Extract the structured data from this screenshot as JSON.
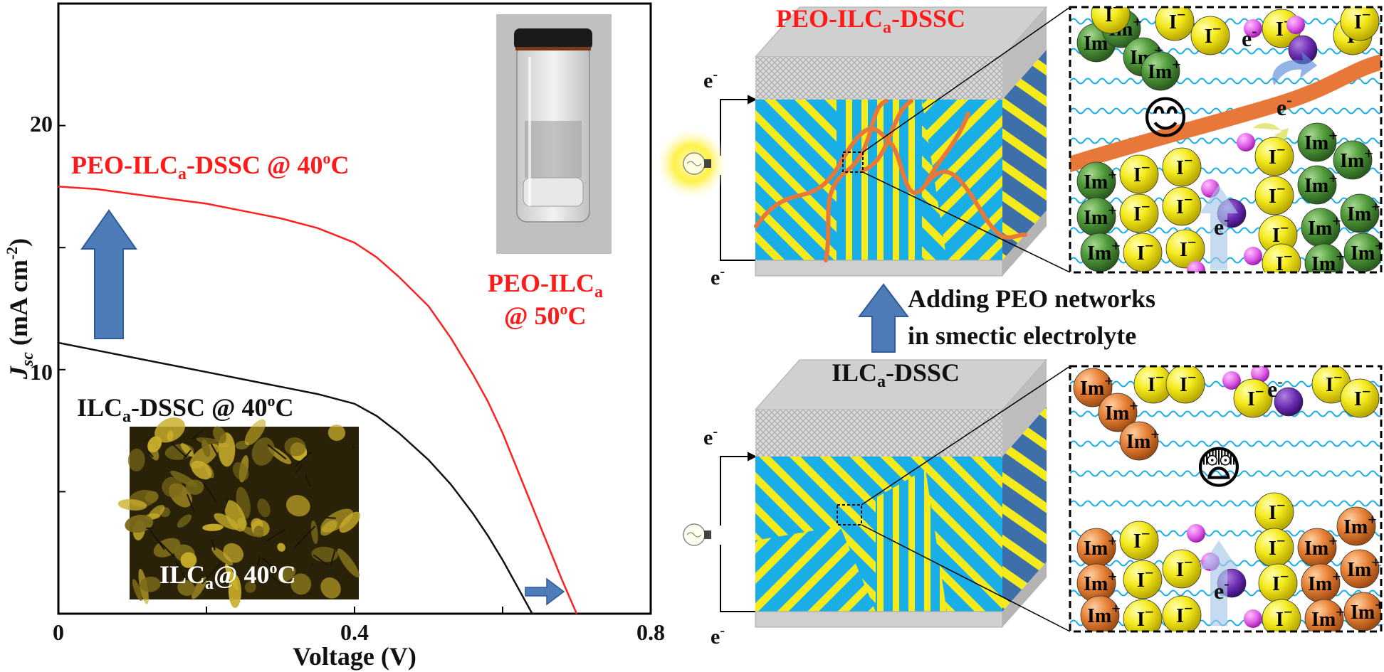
{
  "chart_data": {
    "type": "line",
    "xlabel": "Voltage (V)",
    "ylabel_main": "J",
    "ylabel_sub": "sc",
    "ylabel_unit": " (mA cm",
    "ylabel_sup": "-2",
    "ylabel_close": ")",
    "xlim": [
      0,
      0.8
    ],
    "ylim": [
      0,
      25
    ],
    "xticks": [
      "0",
      "0.4",
      "0.8"
    ],
    "yticks": [
      "10",
      "20"
    ],
    "series": [
      {
        "color": "#ff2020",
        "x": [
          0,
          0.05,
          0.1,
          0.15,
          0.2,
          0.25,
          0.3,
          0.35,
          0.4,
          0.43,
          0.46,
          0.5,
          0.53,
          0.56,
          0.58,
          0.6,
          0.62,
          0.64,
          0.66,
          0.68,
          0.7
        ],
        "y": [
          17.5,
          17.4,
          17.2,
          17.0,
          16.8,
          16.5,
          16.2,
          15.8,
          15.2,
          14.6,
          13.8,
          12.6,
          11.3,
          9.8,
          8.7,
          7.4,
          5.9,
          4.4,
          2.9,
          1.4,
          0
        ]
      },
      {
        "color": "#111111",
        "x": [
          0,
          0.05,
          0.1,
          0.15,
          0.2,
          0.25,
          0.3,
          0.35,
          0.4,
          0.43,
          0.46,
          0.5,
          0.53,
          0.56,
          0.58,
          0.6,
          0.62,
          0.64
        ],
        "y": [
          11.1,
          10.8,
          10.5,
          10.2,
          9.9,
          9.6,
          9.3,
          9.0,
          8.6,
          8.1,
          7.4,
          6.3,
          5.3,
          4.1,
          3.2,
          2.2,
          1.1,
          0
        ]
      }
    ]
  },
  "labels": {
    "peo_curve": {
      "pre": "PEO-ILC",
      "sub": "a",
      "mid": "-DSSC @ 40",
      "sup": "o",
      "post": "C"
    },
    "ilc_curve": {
      "pre": "ILC",
      "sub": "a",
      "mid": "-DSSC @ 40",
      "sup": "o",
      "post": "C"
    },
    "vial_line1": {
      "pre": "PEO-ILC",
      "sub": "a"
    },
    "vial_line2": {
      "pre": "@ 50",
      "sup": "o",
      "post": "C"
    },
    "micro": {
      "pre": "ILC",
      "sub": "a",
      "mid": "@ 40",
      "sup": "o",
      "post": "C"
    }
  },
  "diagram": {
    "top_title": {
      "pre": "PEO-ILC",
      "sub": "a",
      "post": "-DSSC"
    },
    "bottom_title": {
      "pre": "ILC",
      "sub": "a",
      "post": "-DSSC"
    },
    "middle_line1": "Adding PEO networks",
    "middle_line2": "in smectic electrolyte",
    "electron": {
      "base": "e",
      "sup": "-"
    },
    "cation": "Im",
    "cation_sup": "+",
    "anion": "I",
    "anion_sup": "−",
    "happy": "😊",
    "fear": "😨",
    "colors": {
      "lc_blue": "#19aee6",
      "lc_yellow": "#f4ea1c",
      "im_top": "#3f8a2e",
      "im_bottom": "#e0782c",
      "i_ball": "#f4ea1c",
      "peo_fiber": "#e8783a"
    }
  }
}
